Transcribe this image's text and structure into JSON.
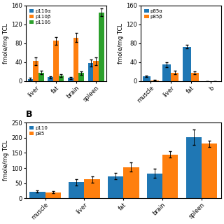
{
  "chart_data": [
    {
      "type": "bar",
      "categories": [
        "liver",
        "fat",
        "brain",
        "spleen"
      ],
      "series": [
        {
          "name": "p110α",
          "values": [
            5,
            8,
            7,
            38
          ],
          "errors": [
            2,
            2,
            2,
            7
          ]
        },
        {
          "name": "p110β",
          "values": [
            42,
            85,
            92,
            42
          ],
          "errors": [
            8,
            8,
            10,
            8
          ]
        },
        {
          "name": "p110δ",
          "values": [
            18,
            12,
            17,
            145
          ],
          "errors": [
            4,
            3,
            4,
            8
          ]
        }
      ],
      "y_label": "fmole/mg TCL",
      "ylim": [
        0,
        160
      ],
      "yticks": [
        0,
        40,
        80,
        120,
        160
      ],
      "legend": "upper left"
    },
    {
      "type": "bar",
      "categories": [
        "muscle",
        "liver",
        "fat",
        "b"
      ],
      "series": [
        {
          "name": "p85α",
          "values": [
            10,
            35,
            73,
            0
          ],
          "errors": [
            2,
            5,
            4,
            0
          ]
        },
        {
          "name": "p85β",
          "values": [
            2,
            18,
            17,
            0
          ],
          "errors": [
            1,
            4,
            3,
            0
          ]
        }
      ],
      "y_label": "fmole/mg TCL",
      "ylim": [
        0,
        160
      ],
      "yticks": [
        0,
        40,
        80,
        120,
        160
      ],
      "legend": "upper left"
    },
    {
      "type": "bar",
      "title": "B",
      "categories": [
        "muscle",
        "liver",
        "fat",
        "brain",
        "spleen"
      ],
      "series": [
        {
          "name": "p110",
          "values": [
            22,
            53,
            73,
            82,
            202
          ],
          "errors": [
            3,
            10,
            10,
            15,
            25
          ]
        },
        {
          "name": "p85",
          "values": [
            20,
            62,
            103,
            145,
            180
          ],
          "errors": [
            3,
            10,
            15,
            10,
            10
          ]
        }
      ],
      "y_label": "fmole/mg TCL",
      "ylim": [
        0,
        250
      ],
      "yticks": [
        0,
        50,
        100,
        150,
        200,
        250
      ],
      "legend": "upper left"
    }
  ]
}
